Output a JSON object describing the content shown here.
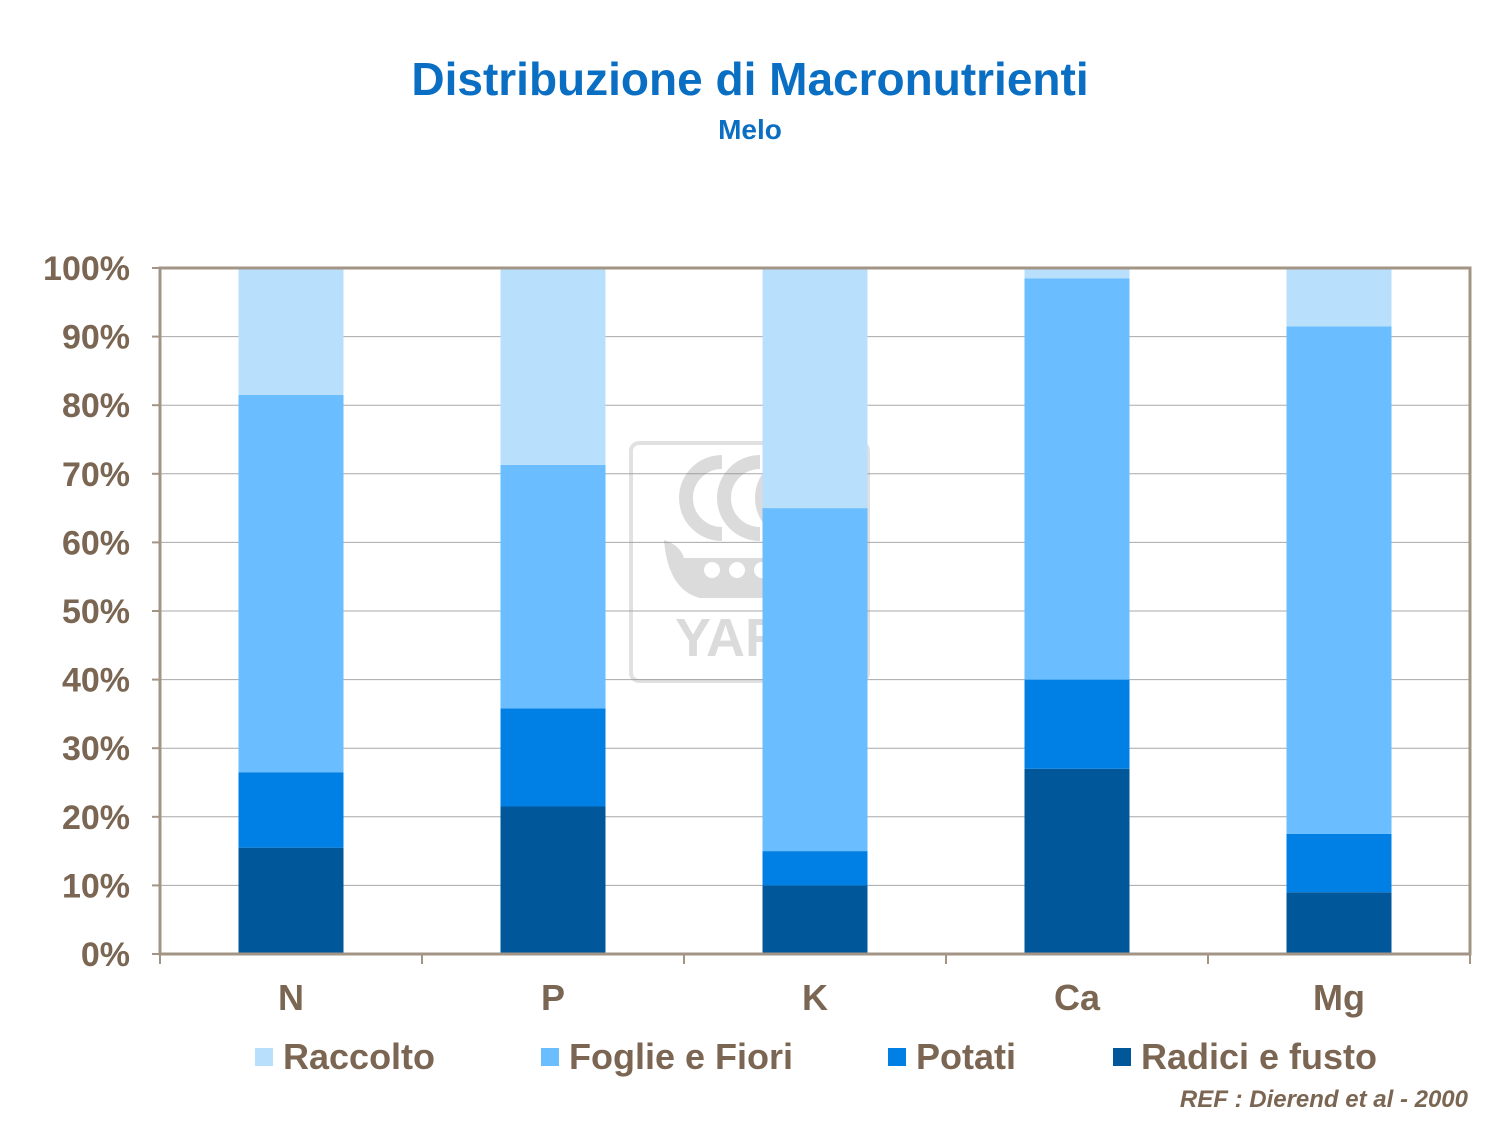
{
  "chart_data": {
    "type": "bar",
    "stacked": true,
    "title": "Distribuzione di Macronutrienti",
    "subtitle": "Melo",
    "categories": [
      "N",
      "P",
      "K",
      "Ca",
      "Mg"
    ],
    "yticks": [
      "0%",
      "10%",
      "20%",
      "30%",
      "40%",
      "50%",
      "60%",
      "70%",
      "80%",
      "90%",
      "100%"
    ],
    "ylim": [
      0,
      100
    ],
    "grid": true,
    "legend_position": "bottom",
    "series": [
      {
        "name": "Radici e fusto",
        "color": "#00579a",
        "values": [
          15.5,
          21.5,
          10,
          27,
          9
        ]
      },
      {
        "name": "Potati",
        "color": "#0080e5",
        "values": [
          11,
          14.3,
          5,
          13,
          8.5
        ]
      },
      {
        "name": "Foglie e Fiori",
        "color": "#6abeff",
        "values": [
          55,
          35.5,
          50,
          58.5,
          74
        ]
      },
      {
        "name": "Raccolto",
        "color": "#b8dffc",
        "values": [
          18.5,
          28.7,
          35,
          1.5,
          8.5
        ]
      }
    ],
    "legend_order": [
      3,
      2,
      1,
      0
    ]
  },
  "watermark": {
    "text": "YARA",
    "icon": "yara-viking-ship-logo"
  },
  "reference": "REF :  Dierend et al - 2000"
}
